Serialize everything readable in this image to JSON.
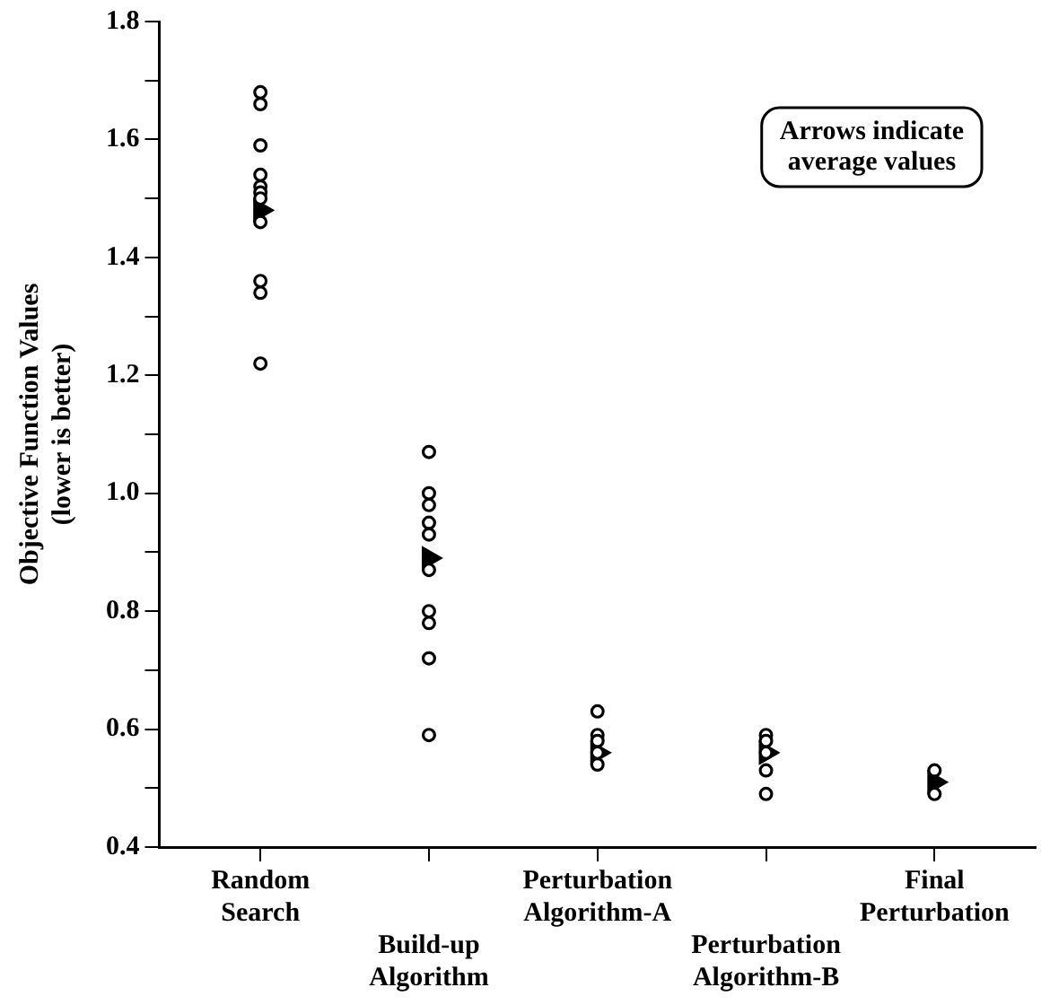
{
  "chart_data": {
    "type": "scatter",
    "ylabel": "Objective Function Values\n(lower is better)",
    "series": [
      {
        "color": "#000000",
        "marker": "circle",
        "x": [
          "Random Search",
          "Random Search",
          "Random Search",
          "Random Search",
          "Random Search",
          "Random Search",
          "Random Search",
          "Random Search",
          "Random Search",
          "Random Search",
          "Random Search",
          "Build-up Algorithm",
          "Build-up Algorithm",
          "Build-up Algorithm",
          "Build-up Algorithm",
          "Build-up Algorithm",
          "Build-up Algorithm",
          "Build-up Algorithm",
          "Build-up Algorithm",
          "Build-up Algorithm",
          "Build-up Algorithm",
          "Perturbation Algorithm-A",
          "Perturbation Algorithm-A",
          "Perturbation Algorithm-A",
          "Perturbation Algorithm-A",
          "Perturbation Algorithm-A",
          "Perturbation Algorithm-B",
          "Perturbation Algorithm-B",
          "Perturbation Algorithm-B",
          "Perturbation Algorithm-B",
          "Perturbation Algorithm-B",
          "Final Perturbation",
          "Final Perturbation"
        ],
        "values": [
          1.68,
          1.66,
          1.59,
          1.54,
          1.52,
          1.51,
          1.5,
          1.46,
          1.36,
          1.34,
          1.22,
          1.07,
          1.0,
          0.98,
          0.95,
          0.93,
          0.87,
          0.8,
          0.78,
          0.72,
          0.59,
          0.63,
          0.59,
          0.58,
          0.56,
          0.54,
          0.59,
          0.58,
          0.56,
          0.53,
          0.49,
          0.53,
          0.49
        ]
      },
      {
        "type": "scatter",
        "marker": "triangle",
        "color": "#000000",
        "values": [
          1.48,
          0.89,
          0.56,
          0.56,
          0.51
        ]
      }
    ],
    "categories": [
      "Random Search",
      "Build-up Algorithm",
      "Perturbation Algorithm-A",
      "Perturbation Algorithm-B",
      "Final Perturbation"
    ],
    "ylim": [
      0.4,
      1.8
    ],
    "yticks": [
      0.4,
      {
        "value": 0.5,
        "label": null
      },
      0.6,
      {
        "value": 0.7,
        "label": null
      },
      0.8,
      {
        "value": 0.9,
        "label": null
      },
      {
        "value": 1,
        "label": "1.0"
      },
      {
        "value": 1.1,
        "label": null
      },
      1.2,
      {
        "value": 1.3,
        "label": null
      },
      1.4,
      {
        "value": 1.5,
        "label": null
      },
      1.6,
      {
        "value": 1.7,
        "label": null
      },
      1.8
    ],
    "annotations": [
      "Arrows indicate\naverage values"
    ],
    "grid": false,
    "legend": false
  }
}
